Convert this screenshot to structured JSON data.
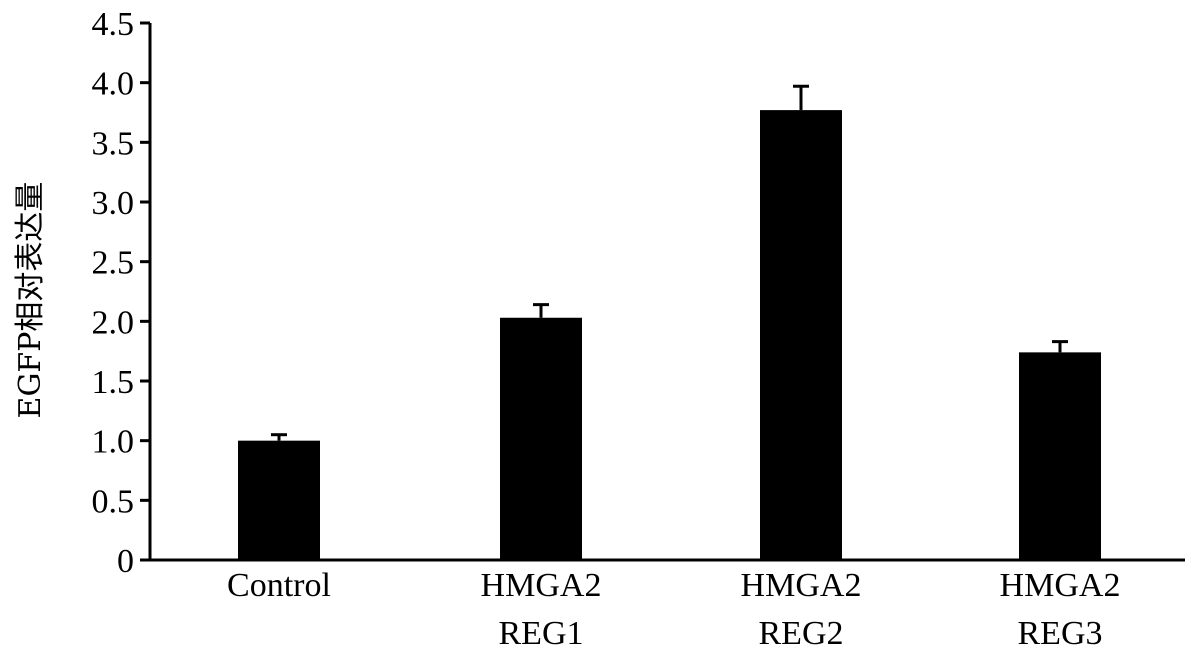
{
  "chart_data": {
    "type": "bar",
    "title": "",
    "xlabel": "",
    "ylabel": "EGFP相对表达量",
    "categories": [
      [
        "Control"
      ],
      [
        "HMGA2",
        "REG1"
      ],
      [
        "HMGA2",
        "REG2"
      ],
      [
        "HMGA2",
        "REG3"
      ]
    ],
    "values": [
      1.0,
      2.03,
      3.77,
      1.74
    ],
    "errors": [
      0.05,
      0.11,
      0.2,
      0.09
    ],
    "ylim": [
      0,
      4.5
    ],
    "yticks": [
      "0",
      "0.5",
      "1.0",
      "1.5",
      "2.0",
      "2.5",
      "3.0",
      "3.5",
      "4.0",
      "4.5"
    ],
    "bar_color": "#000000",
    "grid": false,
    "legend": "none"
  }
}
